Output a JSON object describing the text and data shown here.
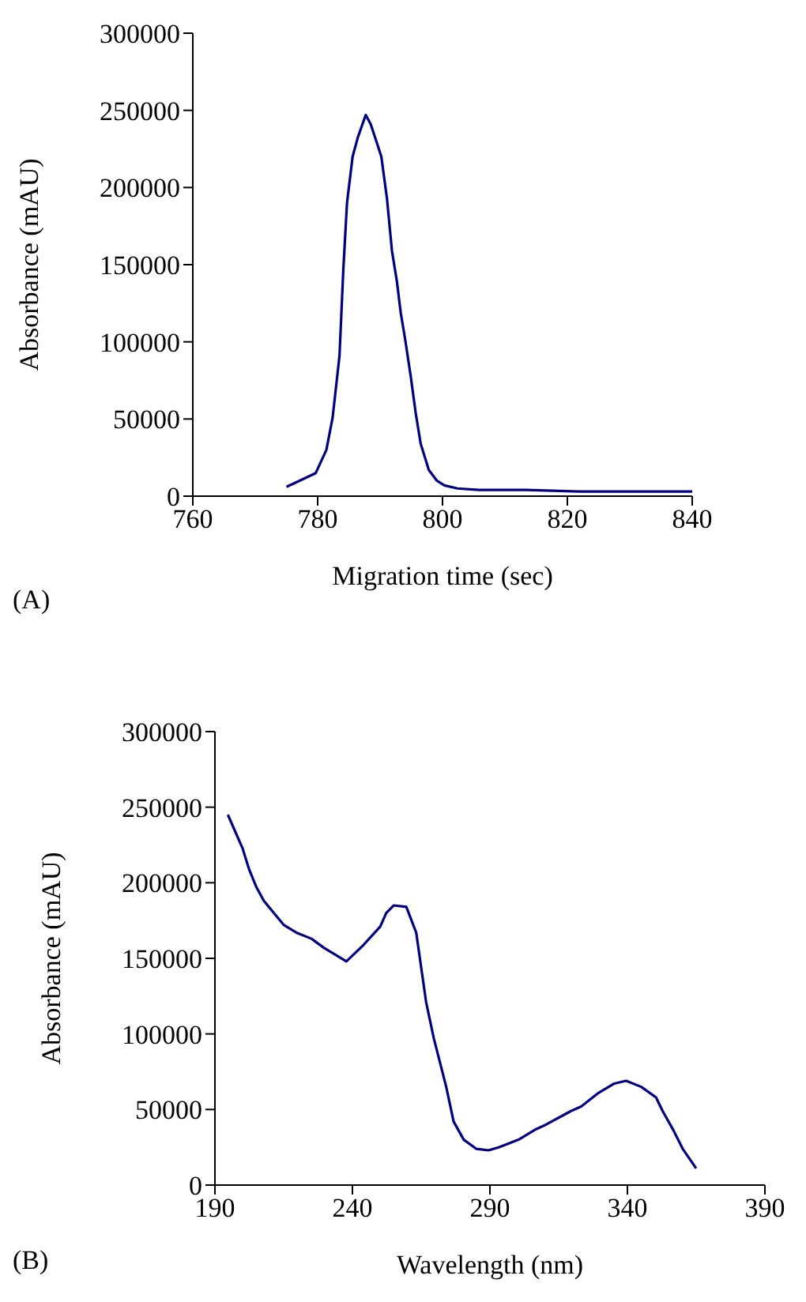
{
  "chart_data": [
    {
      "type": "line",
      "xlabel": "Migration time (sec)",
      "ylabel": "Absorbance (mAU)",
      "annotations": [
        "(A)"
      ],
      "color": "#000080",
      "x": [
        775.0,
        777.1,
        779.7,
        781.4,
        782.4,
        783.5,
        784.1,
        784.7,
        785.6,
        786.4,
        787.7,
        788.5,
        789.4,
        790.2,
        791.1,
        791.9,
        792.7,
        793.3,
        794.0,
        794.9,
        795.7,
        796.5,
        797.8,
        799.1,
        800.3,
        802.4,
        805.8,
        813.4,
        821.9,
        830.3,
        836.6,
        840
      ],
      "values": [
        6000,
        10000,
        15000,
        30000,
        51000,
        91000,
        146000,
        190000,
        220000,
        232000,
        247000,
        241000,
        230000,
        220000,
        193000,
        159000,
        139000,
        119000,
        102000,
        78000,
        54000,
        34000,
        17000,
        10000,
        7000,
        5000,
        4000,
        4000,
        3000,
        3000,
        3000,
        3000
      ],
      "xlim": [
        760,
        840
      ],
      "xticks": [
        760,
        780,
        800,
        820,
        840
      ],
      "ylim": [
        0,
        300000
      ],
      "yticks": [
        0,
        50000,
        100000,
        150000,
        200000,
        250000,
        300000
      ],
      "grid": false,
      "legend": false,
      "marker": "none",
      "line_style": "solid"
    },
    {
      "type": "line",
      "xlabel": "Wavelength (nm)",
      "ylabel": "Absorbance (mAU)",
      "annotations": [
        "(B)"
      ],
      "color": "#000080",
      "x": [
        194.7,
        200.0,
        202.4,
        205.1,
        207.8,
        211.4,
        215.1,
        219.6,
        225.1,
        229.6,
        237.8,
        244.1,
        250.1,
        252.3,
        255.0,
        259.6,
        263.2,
        266.8,
        269.6,
        274.1,
        276.8,
        280.5,
        285.0,
        289.5,
        293.2,
        300.4,
        306.8,
        310.4,
        319.5,
        323.2,
        329.5,
        335.0,
        339.5,
        345.0,
        350.4,
        352.8,
        356.8,
        360.1,
        365.0
      ],
      "values": [
        245000,
        223000,
        209000,
        197000,
        188000,
        180000,
        172000,
        167000,
        163000,
        157000,
        148000,
        159000,
        171000,
        180000,
        185000,
        184000,
        167000,
        121000,
        97000,
        65000,
        42000,
        30000,
        24000,
        23000,
        25000,
        30000,
        37000,
        40000,
        49000,
        52000,
        61000,
        67000,
        69000,
        65000,
        58000,
        49000,
        36000,
        24000,
        11000
      ],
      "xlim": [
        190,
        390
      ],
      "xticks": [
        190,
        240,
        290,
        340,
        390
      ],
      "ylim": [
        0,
        300000
      ],
      "yticks": [
        0,
        50000,
        100000,
        150000,
        200000,
        250000,
        300000
      ],
      "grid": false,
      "legend": false,
      "marker": "none",
      "line_style": "solid"
    }
  ]
}
